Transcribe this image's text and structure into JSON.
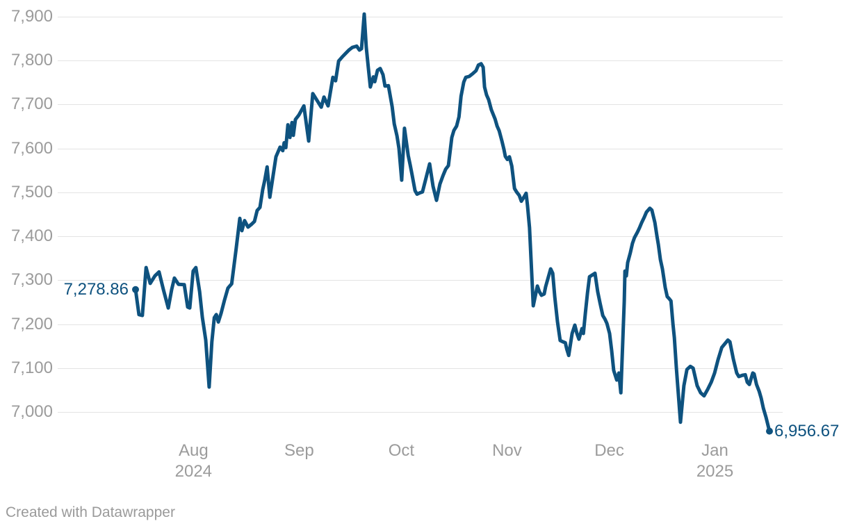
{
  "footer": {
    "credit": "Created with Datawrapper"
  },
  "colors": {
    "line": "#0e527f",
    "value_label": "#0e527f",
    "axis_text": "#9b9b9b",
    "gridline": "#e3e3e3",
    "background": "#ffffff"
  },
  "chart_data": {
    "type": "line",
    "title": "",
    "xlabel": "",
    "ylabel": "",
    "grid": "horizontal",
    "legend": "none",
    "ylim": [
      6940,
      7910
    ],
    "x_range_days": [
      0,
      186
    ],
    "start_date_label": "2024-07-15",
    "end_date_label": "2025-01-17",
    "start_value": 7278.86,
    "end_value": 6956.67,
    "start_value_label": "7,278.86",
    "end_value_label": "6,956.67",
    "y_ticks": [
      {
        "label": "7,900",
        "value": 7900
      },
      {
        "label": "7,800",
        "value": 7800
      },
      {
        "label": "7,700",
        "value": 7700
      },
      {
        "label": "7,600",
        "value": 7600
      },
      {
        "label": "7,500",
        "value": 7500
      },
      {
        "label": "7,400",
        "value": 7400
      },
      {
        "label": "7,300",
        "value": 7300
      },
      {
        "label": "7,200",
        "value": 7200
      },
      {
        "label": "7,100",
        "value": 7100
      },
      {
        "label": "7,000",
        "value": 7000
      }
    ],
    "x_ticks": [
      {
        "label": "Aug",
        "sublabel": "2024",
        "day": 17
      },
      {
        "label": "Sep",
        "sublabel": "",
        "day": 48
      },
      {
        "label": "Oct",
        "sublabel": "",
        "day": 78
      },
      {
        "label": "Nov",
        "sublabel": "",
        "day": 109
      },
      {
        "label": "Dec",
        "sublabel": "",
        "day": 139
      },
      {
        "label": "Jan",
        "sublabel": "2025",
        "day": 170
      }
    ],
    "points": [
      [
        0,
        7278.86
      ],
      [
        1,
        7222
      ],
      [
        2,
        7220
      ],
      [
        3.1,
        7329
      ],
      [
        4.3,
        7293
      ],
      [
        5.7,
        7310
      ],
      [
        6.9,
        7319
      ],
      [
        8.2,
        7278
      ],
      [
        9.6,
        7237
      ],
      [
        10.6,
        7279
      ],
      [
        11.4,
        7305
      ],
      [
        12.6,
        7291
      ],
      [
        14.3,
        7290
      ],
      [
        15.3,
        7239
      ],
      [
        15.9,
        7237
      ],
      [
        16.9,
        7321
      ],
      [
        17.7,
        7329
      ],
      [
        18.8,
        7274
      ],
      [
        19.6,
        7216
      ],
      [
        20.6,
        7164
      ],
      [
        21.6,
        7057
      ],
      [
        22.4,
        7160
      ],
      [
        23.1,
        7215
      ],
      [
        23.7,
        7222
      ],
      [
        24.3,
        7205
      ],
      [
        25.1,
        7225
      ],
      [
        26.1,
        7255
      ],
      [
        27.1,
        7282
      ],
      [
        28.2,
        7292
      ],
      [
        29.5,
        7370
      ],
      [
        30.6,
        7441
      ],
      [
        31.2,
        7413
      ],
      [
        32,
        7436
      ],
      [
        33,
        7421
      ],
      [
        34.1,
        7428
      ],
      [
        34.9,
        7434
      ],
      [
        35.7,
        7459
      ],
      [
        36.5,
        7466
      ],
      [
        37.3,
        7506
      ],
      [
        37.9,
        7527
      ],
      [
        38.6,
        7558
      ],
      [
        39.4,
        7489
      ],
      [
        41.2,
        7581
      ],
      [
        42.4,
        7603
      ],
      [
        43.2,
        7595
      ],
      [
        43.6,
        7613
      ],
      [
        44.1,
        7602
      ],
      [
        44.7,
        7654
      ],
      [
        45.3,
        7625
      ],
      [
        45.9,
        7659
      ],
      [
        46.3,
        7630
      ],
      [
        46.9,
        7666
      ],
      [
        47.9,
        7676
      ],
      [
        49.4,
        7697
      ],
      [
        50.8,
        7617
      ],
      [
        52,
        7725
      ],
      [
        54.5,
        7694
      ],
      [
        55.3,
        7717
      ],
      [
        56.5,
        7697
      ],
      [
        57.9,
        7762
      ],
      [
        58.7,
        7754
      ],
      [
        59.6,
        7799
      ],
      [
        60.6,
        7808
      ],
      [
        61.6,
        7816
      ],
      [
        62.6,
        7824
      ],
      [
        63.6,
        7830
      ],
      [
        64.9,
        7833
      ],
      [
        65.7,
        7824
      ],
      [
        66.3,
        7827
      ],
      [
        67.1,
        7906
      ],
      [
        67.7,
        7831
      ],
      [
        68.3,
        7784
      ],
      [
        68.9,
        7740
      ],
      [
        69.8,
        7763
      ],
      [
        70.2,
        7752
      ],
      [
        71,
        7778
      ],
      [
        71.8,
        7782
      ],
      [
        72.6,
        7768
      ],
      [
        73.2,
        7742
      ],
      [
        74.2,
        7743
      ],
      [
        75.3,
        7695
      ],
      [
        75.9,
        7656
      ],
      [
        76.7,
        7629
      ],
      [
        77.3,
        7600
      ],
      [
        78.1,
        7528
      ],
      [
        78.9,
        7646
      ],
      [
        80,
        7584
      ],
      [
        80.6,
        7562
      ],
      [
        81.2,
        7538
      ],
      [
        82,
        7504
      ],
      [
        82.6,
        7496
      ],
      [
        83.4,
        7499
      ],
      [
        84.2,
        7501
      ],
      [
        86.3,
        7565
      ],
      [
        87.3,
        7514
      ],
      [
        88.3,
        7482
      ],
      [
        89.3,
        7519
      ],
      [
        90.2,
        7538
      ],
      [
        91,
        7553
      ],
      [
        91.8,
        7561
      ],
      [
        92.8,
        7625
      ],
      [
        93.4,
        7641
      ],
      [
        94.2,
        7651
      ],
      [
        94.9,
        7672
      ],
      [
        95.5,
        7719
      ],
      [
        96.3,
        7751
      ],
      [
        96.9,
        7762
      ],
      [
        97.9,
        7764
      ],
      [
        98.9,
        7770
      ],
      [
        99.9,
        7777
      ],
      [
        100.6,
        7790
      ],
      [
        101.4,
        7793
      ],
      [
        102,
        7785
      ],
      [
        102.4,
        7740
      ],
      [
        103,
        7722
      ],
      [
        103.6,
        7711
      ],
      [
        104.4,
        7688
      ],
      [
        105.5,
        7667
      ],
      [
        106.1,
        7651
      ],
      [
        106.7,
        7640
      ],
      [
        107.5,
        7617
      ],
      [
        108.1,
        7598
      ],
      [
        108.5,
        7582
      ],
      [
        109.1,
        7575
      ],
      [
        109.7,
        7581
      ],
      [
        110.4,
        7560
      ],
      [
        111.2,
        7509
      ],
      [
        111.8,
        7501
      ],
      [
        112.6,
        7493
      ],
      [
        113.2,
        7480
      ],
      [
        114,
        7490
      ],
      [
        114.6,
        7498
      ],
      [
        115,
        7470
      ],
      [
        115.6,
        7420
      ],
      [
        116.7,
        7242
      ],
      [
        117.9,
        7287
      ],
      [
        118.5,
        7274
      ],
      [
        119.1,
        7266
      ],
      [
        119.9,
        7269
      ],
      [
        120.3,
        7285
      ],
      [
        121.8,
        7326
      ],
      [
        122.4,
        7316
      ],
      [
        123,
        7263
      ],
      [
        123.8,
        7206
      ],
      [
        124.6,
        7163
      ],
      [
        125.4,
        7160
      ],
      [
        126.1,
        7158
      ],
      [
        126.5,
        7144
      ],
      [
        127.1,
        7129
      ],
      [
        128.1,
        7179
      ],
      [
        128.9,
        7198
      ],
      [
        129.5,
        7179
      ],
      [
        130.1,
        7166
      ],
      [
        131,
        7190
      ],
      [
        131.4,
        7179
      ],
      [
        132,
        7226
      ],
      [
        132.6,
        7271
      ],
      [
        133.2,
        7308
      ],
      [
        134,
        7312
      ],
      [
        134.8,
        7316
      ],
      [
        135.6,
        7274
      ],
      [
        136.3,
        7248
      ],
      [
        137.1,
        7220
      ],
      [
        137.7,
        7212
      ],
      [
        138.3,
        7202
      ],
      [
        139.1,
        7179
      ],
      [
        139.7,
        7140
      ],
      [
        140.3,
        7095
      ],
      [
        141.2,
        7073
      ],
      [
        141.8,
        7089
      ],
      [
        142.4,
        7044
      ],
      [
        143.4,
        7252
      ],
      [
        143.6,
        7321
      ],
      [
        144,
        7310
      ],
      [
        144.4,
        7340
      ],
      [
        145.2,
        7363
      ],
      [
        145.8,
        7384
      ],
      [
        146.4,
        7397
      ],
      [
        147.3,
        7410
      ],
      [
        147.9,
        7420
      ],
      [
        148.5,
        7431
      ],
      [
        149.3,
        7444
      ],
      [
        149.9,
        7455
      ],
      [
        150.9,
        7464
      ],
      [
        151.5,
        7460
      ],
      [
        152.4,
        7431
      ],
      [
        153,
        7400
      ],
      [
        153.4,
        7381
      ],
      [
        154,
        7347
      ],
      [
        154.6,
        7326
      ],
      [
        155.4,
        7284
      ],
      [
        156,
        7263
      ],
      [
        156.6,
        7258
      ],
      [
        157.1,
        7253
      ],
      [
        157.7,
        7200
      ],
      [
        158.1,
        7169
      ],
      [
        158.7,
        7100
      ],
      [
        159.1,
        7058
      ],
      [
        159.9,
        6977
      ],
      [
        160.9,
        7060
      ],
      [
        161.8,
        7097
      ],
      [
        162.8,
        7104
      ],
      [
        163.6,
        7100
      ],
      [
        164.8,
        7060
      ],
      [
        165.8,
        7044
      ],
      [
        166.8,
        7037
      ],
      [
        167.9,
        7052
      ],
      [
        168.9,
        7068
      ],
      [
        169.9,
        7089
      ],
      [
        170.9,
        7119
      ],
      [
        172,
        7147
      ],
      [
        173.8,
        7164
      ],
      [
        174.4,
        7160
      ],
      [
        175.4,
        7121
      ],
      [
        176.4,
        7089
      ],
      [
        177,
        7081
      ],
      [
        178.1,
        7084
      ],
      [
        178.9,
        7085
      ],
      [
        179.5,
        7068
      ],
      [
        180.1,
        7063
      ],
      [
        181.1,
        7089
      ],
      [
        181.5,
        7087
      ],
      [
        182.2,
        7063
      ],
      [
        183,
        7047
      ],
      [
        183.6,
        7031
      ],
      [
        184.2,
        7009
      ],
      [
        185,
        6988
      ],
      [
        186,
        6956.67
      ]
    ]
  }
}
